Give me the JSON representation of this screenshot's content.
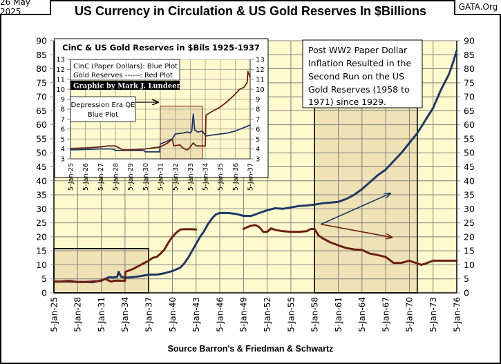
{
  "header": {
    "date": "26 May 2025",
    "site": "GATA.Org",
    "title": "US Currency in Circulation  & US Gold Reserves In $Billions"
  },
  "footer": {
    "source": "Source Barron's & Friedman & Schwartz"
  },
  "colors": {
    "plot_bg": "#FFFACD",
    "highlight_bg": "#EFE3B6",
    "currency_line": "#1F3864",
    "gold_line": "#6B1F12",
    "grid": "#7F7F7F"
  },
  "annotations": {
    "post_ww2_note": [
      "Post WW2  Paper Dollar",
      "Inflation Resulted in the",
      "Second Run on the US",
      "Gold Reserves (1958 to",
      "1971)  since 1929."
    ],
    "inset_title": "CinC & US Gold Reserves in $Bils 1925-1937",
    "inset_legend": [
      "CinC (Paper Dollars):  Blue Plot",
      "Gold Reserves ------:  Red Plot"
    ],
    "credit": "Graphic by Mark J. Lundeen",
    "depression_note": [
      "Depression Era QE",
      "Blue Plot"
    ]
  },
  "chart_data": [
    {
      "type": "line",
      "title": "US Currency in Circulation  & US Gold Reserves In $Billions",
      "xlabel": "Source Barron's & Friedman & Schwartz",
      "ylabel": "",
      "xlim": [
        1925,
        1976
      ],
      "ylim": [
        0,
        90
      ],
      "grid": true,
      "y_ticks": [
        0,
        5,
        10,
        15,
        20,
        25,
        30,
        35,
        40,
        45,
        50,
        55,
        60,
        65,
        70,
        75,
        80,
        85,
        90
      ],
      "x_tick_labels": [
        "5-Jan-25",
        "5-Jan-28",
        "5-Jan-31",
        "5-Jan-34",
        "5-Jan-37",
        "5-Jan-40",
        "5-Jan-43",
        "5-Jan-46",
        "5-Jan-49",
        "5-Jan-52",
        "5-Jan-55",
        "5-Jan-58",
        "5-Jan-61",
        "5-Jan-64",
        "5-Jan-67",
        "5-Jan-70",
        "5-Jan-73",
        "5-Jan-76"
      ],
      "x_tick_years": [
        1925,
        1928,
        1931,
        1934,
        1937,
        1940,
        1943,
        1946,
        1949,
        1952,
        1955,
        1958,
        1961,
        1964,
        1967,
        1970,
        1973,
        1976
      ],
      "highlights": [
        {
          "x": [
            1925,
            1937
          ],
          "y": [
            0,
            15.8
          ]
        },
        {
          "x": [
            1958,
            1971
          ],
          "y": [
            0,
            67
          ]
        }
      ],
      "series": [
        {
          "name": "Currency in Circulation (Blue Plot)",
          "x": [
            1925,
            1926,
            1927,
            1928,
            1929,
            1930,
            1931,
            1931.5,
            1932,
            1932.5,
            1933,
            1933.2,
            1933.5,
            1934,
            1935,
            1936,
            1937,
            1938,
            1939,
            1940,
            1941,
            1941.5,
            1942,
            1942.5,
            1943,
            1943.5,
            1944,
            1944.5,
            1945,
            1945.5,
            1946,
            1947,
            1948,
            1949,
            1950,
            1951,
            1952,
            1953,
            1954,
            1955,
            1956,
            1957,
            1958,
            1959,
            1960,
            1961,
            1962,
            1963,
            1964,
            1965,
            1966,
            1967,
            1968,
            1969,
            1970,
            1971,
            1972,
            1973,
            1974,
            1975,
            1975.5,
            1976
          ],
          "values": [
            4.0,
            4.0,
            4.0,
            3.9,
            3.9,
            3.8,
            4.5,
            5.0,
            5.6,
            5.5,
            5.7,
            7.5,
            5.8,
            5.4,
            5.6,
            6.0,
            6.5,
            6.5,
            7.0,
            7.8,
            9.0,
            10.5,
            12.5,
            15.0,
            17.5,
            20.0,
            22.0,
            24.5,
            26.5,
            28.0,
            28.5,
            28.5,
            28.2,
            27.5,
            27.5,
            28.5,
            29.5,
            30.2,
            30.0,
            30.5,
            31.0,
            31.2,
            31.5,
            32.0,
            32.2,
            32.5,
            33.5,
            35.0,
            37.0,
            39.5,
            42.0,
            44.0,
            47.0,
            50.0,
            53.5,
            57.0,
            61.5,
            66.0,
            72.5,
            78.0,
            82.0,
            86.5
          ]
        },
        {
          "name": "Gold Reserves (Red Plot)",
          "segments": [
            {
              "x": [
                1925,
                1926,
                1927,
                1928,
                1929,
                1930,
                1931,
                1931.5,
                1932,
                1932.3,
                1932.6,
                1933,
                1933.5,
                1934,
                1934.05,
                1935,
                1936,
                1937,
                1937.5,
                1938,
                1938.5,
                1939,
                1939.5,
                1940,
                1940.5,
                1941,
                1941.5,
                1942,
                1942.5,
                1943
              ],
              "values": [
                4.0,
                4.1,
                4.3,
                3.9,
                3.9,
                4.1,
                4.3,
                5.0,
                4.3,
                4.0,
                4.3,
                4.4,
                4.3,
                4.3,
                7.5,
                8.5,
                10.0,
                11.5,
                12.5,
                12.8,
                14.0,
                15.5,
                18.0,
                20.0,
                21.5,
                22.6,
                22.7,
                22.7,
                22.7,
                22.6
              ]
            },
            {
              "x": [
                1949,
                1949.5,
                1950,
                1950.5,
                1951,
                1951.5,
                1952,
                1952.5,
                1953,
                1954,
                1955,
                1956,
                1957,
                1957.5,
                1958,
                1958.5,
                1959,
                1960,
                1961,
                1962,
                1963,
                1964,
                1965,
                1966,
                1967,
                1968,
                1968.5,
                1969,
                1970,
                1970.5,
                1971,
                1971.5,
                1972,
                1973,
                1974,
                1975,
                1976
              ],
              "values": [
                22.8,
                23.5,
                24.0,
                24.2,
                23.5,
                21.8,
                21.8,
                23.0,
                22.5,
                22.0,
                21.8,
                21.8,
                22.0,
                22.8,
                22.8,
                20.5,
                19.5,
                18.0,
                17.0,
                16.0,
                15.5,
                15.3,
                14.0,
                13.5,
                12.8,
                10.7,
                10.7,
                10.7,
                11.5,
                11.0,
                10.5,
                10.0,
                10.4,
                11.5,
                11.5,
                11.5,
                11.5
              ]
            }
          ]
        }
      ],
      "arrows": [
        {
          "name": "currency-trend-arrow",
          "from": [
            1958.8,
            24.5
          ],
          "to": [
            1967.6,
            35.5
          ]
        },
        {
          "name": "gold-trend-arrow",
          "from": [
            1958.8,
            24.5
          ],
          "to": [
            1967.8,
            19.8
          ]
        }
      ]
    },
    {
      "type": "line",
      "title": "CinC & US Gold Reserves in $Bils 1925-1937",
      "xlim": [
        1925,
        1937
      ],
      "ylim": [
        3,
        13
      ],
      "grid": true,
      "y_ticks": [
        3,
        4,
        5,
        6,
        7,
        8,
        9,
        10,
        11,
        12,
        13
      ],
      "x_tick_labels": [
        "5-Jan-25",
        "5-Jan-26",
        "5-Jan-27",
        "5-Jan-28",
        "5-Jan-29",
        "5-Jan-30",
        "5-Jan-31",
        "5-Jan-32",
        "5-Jan-33",
        "5-Jan-34",
        "5-Jan-35",
        "5-Jan-36",
        "5-Jan-37"
      ],
      "x_tick_years": [
        1925,
        1926,
        1927,
        1928,
        1929,
        1930,
        1931,
        1932,
        1933,
        1934,
        1935,
        1936,
        1937
      ],
      "highlights": [
        {
          "x": [
            1931,
            1933.8
          ],
          "y": [
            3,
            8.3
          ]
        }
      ],
      "series": [
        {
          "name": "CinC (Paper Dollars): Blue Plot",
          "x": [
            1925,
            1926,
            1927,
            1927.8,
            1928,
            1929,
            1929.9,
            1930,
            1930.95,
            1931,
            1931.5,
            1931.8,
            1932,
            1932.5,
            1932.8,
            1933,
            1933.1,
            1933.2,
            1933.3,
            1933.5,
            1933.8,
            1934,
            1934.05,
            1934.5,
            1935,
            1935.5,
            1936,
            1936.5,
            1937
          ],
          "values": [
            3.9,
            3.95,
            4.0,
            4.0,
            3.85,
            3.85,
            3.85,
            3.7,
            3.7,
            4.5,
            4.8,
            5.0,
            5.5,
            5.6,
            5.7,
            5.6,
            5.8,
            7.5,
            5.9,
            5.7,
            5.8,
            5.4,
            5.3,
            5.4,
            5.5,
            5.6,
            5.8,
            6.1,
            6.4
          ]
        },
        {
          "name": "Gold Reserves ------: Red Plot",
          "x": [
            1925,
            1926,
            1927,
            1927.5,
            1928,
            1928.5,
            1929,
            1930,
            1931,
            1931.5,
            1931.8,
            1931.9,
            1932.3,
            1932.5,
            1932.8,
            1933,
            1933.2,
            1933.4,
            1933.9,
            1934,
            1934.05,
            1934.5,
            1935,
            1935.5,
            1936,
            1936.3,
            1936.6,
            1936.8,
            1936.85,
            1937
          ],
          "values": [
            4.05,
            4.1,
            4.2,
            4.3,
            4.3,
            3.9,
            3.9,
            4.0,
            4.2,
            4.6,
            5.0,
            4.3,
            4.4,
            4.1,
            3.9,
            4.2,
            4.6,
            4.3,
            4.3,
            4.3,
            7.4,
            7.8,
            8.2,
            8.8,
            9.5,
            10.0,
            10.2,
            10.7,
            11.8,
            11.2
          ]
        }
      ]
    }
  ]
}
